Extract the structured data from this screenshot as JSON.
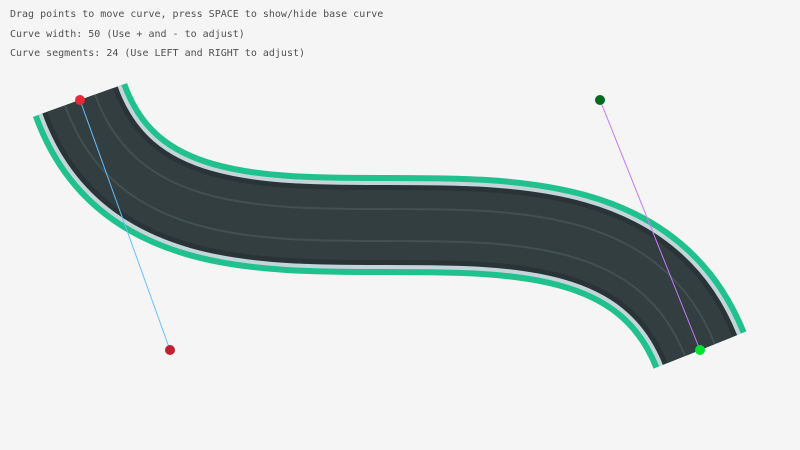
{
  "instructions": {
    "line1": "Drag points to move curve, press SPACE to show/hide base curve",
    "line2": "Curve width: 50 (Use + and - to adjust)",
    "line3": "Curve segments: 24 (Use LEFT and RIGHT to adjust)"
  },
  "curve": {
    "width": 50,
    "segments": 24,
    "start_point_color": "#e62937",
    "start_control_color": "#be2131",
    "end_point_color": "#00e430",
    "end_control_color": "#006b1f",
    "start_handle_line_color": "#66bfff",
    "end_handle_line_color": "#c87aff",
    "border_color": "#21c18d",
    "shoulder_color": "#c3d5d9",
    "edge_color": "#2a3336",
    "road_color": "#323e3f",
    "lane_line_color": "#415051"
  }
}
